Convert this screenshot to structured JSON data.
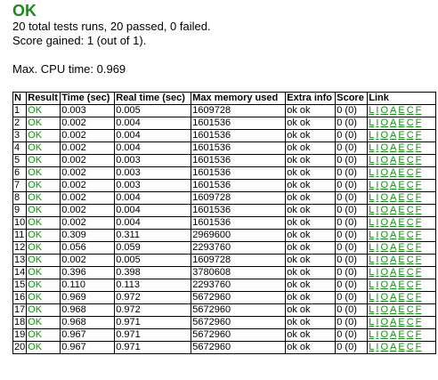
{
  "verdict": "OK",
  "summary": {
    "tests_line": "20 total tests runs, 20 passed, 0 failed.",
    "score_line": "Score gained: 1 (out of 1).",
    "cpu_line": "Max. CPU time: 0.969"
  },
  "table": {
    "headers": [
      "N",
      "Result",
      "Time (sec)",
      "Real time (sec)",
      "Max memory used",
      "Extra info",
      "Score",
      "Link"
    ],
    "link_labels": [
      "L",
      "I",
      "O",
      "A",
      "E",
      "C",
      "F"
    ],
    "rows": [
      {
        "n": "1",
        "result": "OK",
        "time": "0.003",
        "real": "0.005",
        "mem": "1609728",
        "extra": "ok ok",
        "score": "0 (0)"
      },
      {
        "n": "2",
        "result": "OK",
        "time": "0.002",
        "real": "0.004",
        "mem": "1601536",
        "extra": "ok ok",
        "score": "0 (0)"
      },
      {
        "n": "3",
        "result": "OK",
        "time": "0.002",
        "real": "0.004",
        "mem": "1601536",
        "extra": "ok ok",
        "score": "0 (0)"
      },
      {
        "n": "4",
        "result": "OK",
        "time": "0.002",
        "real": "0.004",
        "mem": "1601536",
        "extra": "ok ok",
        "score": "0 (0)"
      },
      {
        "n": "5",
        "result": "OK",
        "time": "0.002",
        "real": "0.003",
        "mem": "1601536",
        "extra": "ok ok",
        "score": "0 (0)"
      },
      {
        "n": "6",
        "result": "OK",
        "time": "0.002",
        "real": "0.003",
        "mem": "1601536",
        "extra": "ok ok",
        "score": "0 (0)"
      },
      {
        "n": "7",
        "result": "OK",
        "time": "0.002",
        "real": "0.003",
        "mem": "1601536",
        "extra": "ok ok",
        "score": "0 (0)"
      },
      {
        "n": "8",
        "result": "OK",
        "time": "0.002",
        "real": "0.004",
        "mem": "1609728",
        "extra": "ok ok",
        "score": "0 (0)"
      },
      {
        "n": "9",
        "result": "OK",
        "time": "0.002",
        "real": "0.004",
        "mem": "1601536",
        "extra": "ok ok",
        "score": "0 (0)"
      },
      {
        "n": "10",
        "result": "OK",
        "time": "0.002",
        "real": "0.004",
        "mem": "1601536",
        "extra": "ok ok",
        "score": "0 (0)"
      },
      {
        "n": "11",
        "result": "OK",
        "time": "0.309",
        "real": "0.311",
        "mem": "2969600",
        "extra": "ok ok",
        "score": "0 (0)"
      },
      {
        "n": "12",
        "result": "OK",
        "time": "0.056",
        "real": "0.059",
        "mem": "2293760",
        "extra": "ok ok",
        "score": "0 (0)"
      },
      {
        "n": "13",
        "result": "OK",
        "time": "0.002",
        "real": "0.005",
        "mem": "1609728",
        "extra": "ok ok",
        "score": "0 (0)"
      },
      {
        "n": "14",
        "result": "OK",
        "time": "0.396",
        "real": "0.398",
        "mem": "3780608",
        "extra": "ok ok",
        "score": "0 (0)"
      },
      {
        "n": "15",
        "result": "OK",
        "time": "0.110",
        "real": "0.113",
        "mem": "2293760",
        "extra": "ok ok",
        "score": "0 (0)"
      },
      {
        "n": "16",
        "result": "OK",
        "time": "0.969",
        "real": "0.972",
        "mem": "5672960",
        "extra": "ok ok",
        "score": "0 (0)"
      },
      {
        "n": "17",
        "result": "OK",
        "time": "0.968",
        "real": "0.972",
        "mem": "5672960",
        "extra": "ok ok",
        "score": "0 (0)"
      },
      {
        "n": "18",
        "result": "OK",
        "time": "0.968",
        "real": "0.971",
        "mem": "5672960",
        "extra": "ok ok",
        "score": "0 (0)"
      },
      {
        "n": "19",
        "result": "OK",
        "time": "0.967",
        "real": "0.971",
        "mem": "5672960",
        "extra": "ok ok",
        "score": "0 (0)"
      },
      {
        "n": "20",
        "result": "OK",
        "time": "0.967",
        "real": "0.971",
        "mem": "5672960",
        "extra": "ok ok",
        "score": "0 (0)"
      }
    ]
  },
  "colors": {
    "ok_green": "#1a8c1a",
    "border": "#000000"
  }
}
